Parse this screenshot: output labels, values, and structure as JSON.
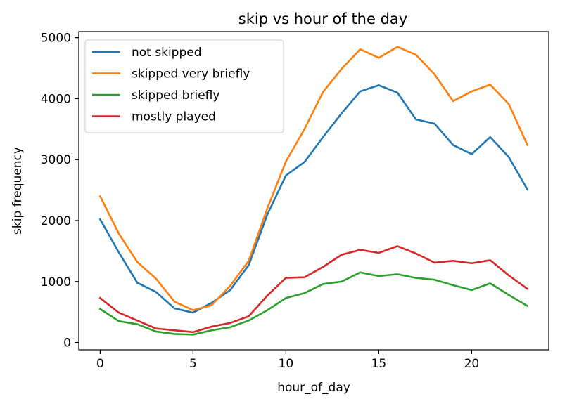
{
  "chart_data": {
    "type": "line",
    "title": "skip vs hour of the day",
    "xlabel": "hour_of_day",
    "ylabel": "skip frequency",
    "xlim": [
      -1.15,
      24.15
    ],
    "ylim": [
      -120,
      5100
    ],
    "xticks": [
      0,
      5,
      10,
      15,
      20
    ],
    "yticks": [
      0,
      1000,
      2000,
      3000,
      4000,
      5000
    ],
    "grid": false,
    "legend_position": "upper-left",
    "x": [
      0,
      1,
      2,
      3,
      4,
      5,
      6,
      7,
      8,
      9,
      10,
      11,
      12,
      13,
      14,
      15,
      16,
      17,
      18,
      19,
      20,
      21,
      22,
      23
    ],
    "series": [
      {
        "name": "not skipped",
        "color": "#1f77b4",
        "values": [
          2020,
          1480,
          980,
          830,
          560,
          490,
          650,
          860,
          1270,
          2100,
          2740,
          2960,
          3370,
          3760,
          4120,
          4220,
          4100,
          3660,
          3590,
          3240,
          3090,
          3370,
          3040,
          2510
        ]
      },
      {
        "name": "skipped very briefly",
        "color": "#ff7f0e",
        "values": [
          2400,
          1790,
          1320,
          1050,
          670,
          530,
          610,
          930,
          1340,
          2200,
          2970,
          3500,
          4110,
          4490,
          4810,
          4670,
          4850,
          4720,
          4400,
          3960,
          4120,
          4230,
          3910,
          3240
        ]
      },
      {
        "name": "skipped briefly",
        "color": "#2ca02c",
        "values": [
          550,
          350,
          300,
          180,
          140,
          130,
          200,
          250,
          360,
          530,
          730,
          810,
          960,
          1000,
          1150,
          1090,
          1120,
          1060,
          1030,
          940,
          860,
          970,
          780,
          600
        ]
      },
      {
        "name": "mostly played",
        "color": "#d62728",
        "values": [
          730,
          490,
          360,
          230,
          200,
          170,
          260,
          320,
          430,
          770,
          1060,
          1070,
          1240,
          1440,
          1520,
          1470,
          1580,
          1460,
          1310,
          1340,
          1300,
          1350,
          1100,
          880
        ]
      }
    ]
  }
}
